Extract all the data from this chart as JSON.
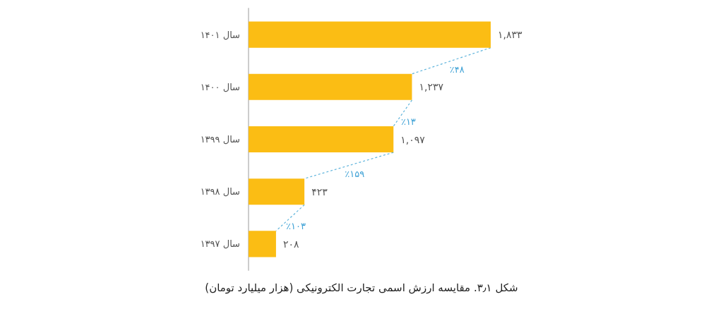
{
  "chart_data": {
    "type": "bar",
    "orientation": "horizontal",
    "title": "شکل ۳٫۱. مقایسه ارزش اسمی تجارت الکترونیکی (هزار میلیارد تومان)",
    "categories": [
      "سال ۱۴۰۱",
      "سال ۱۴۰۰",
      "سال ۱۳۹۹",
      "سال ۱۳۹۸",
      "سال ۱۳۹۷"
    ],
    "values": [
      1833,
      1237,
      1097,
      423,
      208
    ],
    "value_labels": [
      "۱,۸۳۳",
      "۱,۲۳۷",
      "۱,۰۹۷",
      "۴۲۳",
      "۲۰۸"
    ],
    "color": "#fbbd14",
    "annotations": [
      "٪۴۸",
      "٪۱۳",
      "٪۱۵۹",
      "٪۱۰۳"
    ],
    "grid": false
  }
}
